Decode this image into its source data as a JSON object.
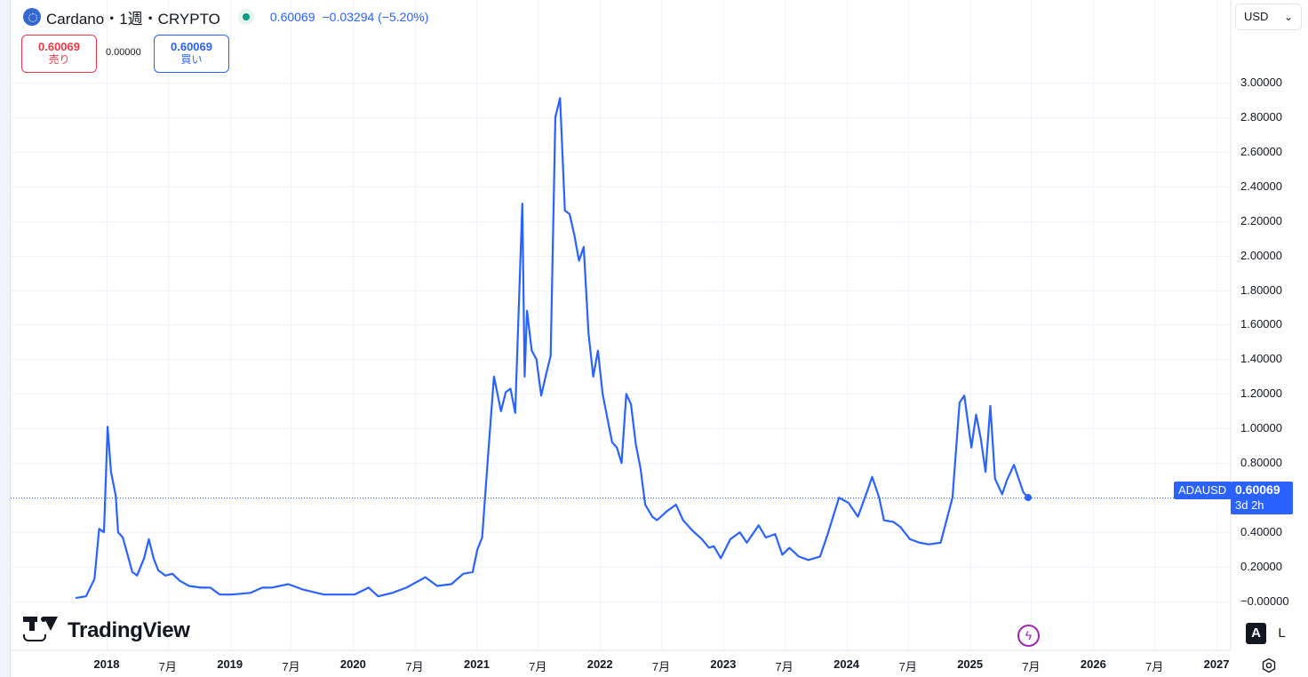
{
  "header": {
    "title": "Cardano・1週・CRYPTO",
    "last_price": "0.60069",
    "change": "−0.03294 (−5.20%)"
  },
  "trade": {
    "sell_price": "0.60069",
    "sell_label": "売り",
    "spread": "0.00000",
    "buy_price": "0.60069",
    "buy_label": "買い"
  },
  "currency": {
    "label": "USD"
  },
  "badge": {
    "symbol": "ADAUSD",
    "price": "0.60069",
    "countdown": "3d 2h"
  },
  "watermark": {
    "brand": "TradingView"
  },
  "scale_buttons": {
    "auto": "A",
    "log": "L"
  },
  "colors": {
    "line": "#2962ff",
    "sell": "#f23645",
    "buy": "#2962ff",
    "up": "#089981",
    "grid": "#f0f3fa"
  },
  "icons": [
    "cardano-logo-icon",
    "market-status-icon",
    "chevron-down-icon",
    "flash-icon",
    "settings-icon",
    "tradingview-logo-icon"
  ],
  "chart_data": {
    "type": "line",
    "series": [
      {
        "name": "ADAUSD",
        "points": [
          [
            "2017-10-01",
            0.02
          ],
          [
            "2017-11-01",
            0.03
          ],
          [
            "2017-11-26",
            0.13
          ],
          [
            "2017-12-10",
            0.42
          ],
          [
            "2017-12-24",
            0.4
          ],
          [
            "2018-01-04",
            1.01
          ],
          [
            "2018-01-14",
            0.75
          ],
          [
            "2018-01-28",
            0.61
          ],
          [
            "2018-02-04",
            0.4
          ],
          [
            "2018-02-18",
            0.37
          ],
          [
            "2018-03-04",
            0.27
          ],
          [
            "2018-03-18",
            0.17
          ],
          [
            "2018-04-01",
            0.15
          ],
          [
            "2018-04-22",
            0.25
          ],
          [
            "2018-05-06",
            0.36
          ],
          [
            "2018-05-20",
            0.25
          ],
          [
            "2018-06-03",
            0.18
          ],
          [
            "2018-06-24",
            0.15
          ],
          [
            "2018-07-15",
            0.16
          ],
          [
            "2018-08-05",
            0.12
          ],
          [
            "2018-09-02",
            0.09
          ],
          [
            "2018-10-07",
            0.08
          ],
          [
            "2018-11-04",
            0.08
          ],
          [
            "2018-12-02",
            0.04
          ],
          [
            "2019-01-06",
            0.04
          ],
          [
            "2019-03-03",
            0.05
          ],
          [
            "2019-04-07",
            0.08
          ],
          [
            "2019-05-05",
            0.08
          ],
          [
            "2019-06-23",
            0.1
          ],
          [
            "2019-08-04",
            0.07
          ],
          [
            "2019-10-06",
            0.04
          ],
          [
            "2019-12-01",
            0.04
          ],
          [
            "2020-01-05",
            0.04
          ],
          [
            "2020-02-16",
            0.08
          ],
          [
            "2020-03-15",
            0.03
          ],
          [
            "2020-04-26",
            0.05
          ],
          [
            "2020-06-07",
            0.08
          ],
          [
            "2020-08-02",
            0.14
          ],
          [
            "2020-09-06",
            0.09
          ],
          [
            "2020-10-18",
            0.1
          ],
          [
            "2020-11-22",
            0.16
          ],
          [
            "2020-12-20",
            0.17
          ],
          [
            "2021-01-03",
            0.3
          ],
          [
            "2021-01-17",
            0.37
          ],
          [
            "2021-02-07",
            0.93
          ],
          [
            "2021-02-21",
            1.3
          ],
          [
            "2021-03-14",
            1.1
          ],
          [
            "2021-03-28",
            1.21
          ],
          [
            "2021-04-11",
            1.23
          ],
          [
            "2021-04-25",
            1.09
          ],
          [
            "2021-05-16",
            2.3
          ],
          [
            "2021-05-23",
            1.3
          ],
          [
            "2021-05-30",
            1.68
          ],
          [
            "2021-06-13",
            1.45
          ],
          [
            "2021-06-27",
            1.4
          ],
          [
            "2021-07-11",
            1.19
          ],
          [
            "2021-07-25",
            1.31
          ],
          [
            "2021-08-08",
            1.42
          ],
          [
            "2021-08-22",
            2.8
          ],
          [
            "2021-09-05",
            2.91
          ],
          [
            "2021-09-19",
            2.26
          ],
          [
            "2021-10-03",
            2.24
          ],
          [
            "2021-10-17",
            2.12
          ],
          [
            "2021-10-31",
            1.97
          ],
          [
            "2021-11-14",
            2.05
          ],
          [
            "2021-11-28",
            1.55
          ],
          [
            "2021-12-12",
            1.3
          ],
          [
            "2021-12-26",
            1.45
          ],
          [
            "2022-01-09",
            1.2
          ],
          [
            "2022-01-23",
            1.06
          ],
          [
            "2022-02-06",
            0.92
          ],
          [
            "2022-02-20",
            0.89
          ],
          [
            "2022-03-06",
            0.8
          ],
          [
            "2022-03-20",
            1.2
          ],
          [
            "2022-04-03",
            1.14
          ],
          [
            "2022-04-17",
            0.91
          ],
          [
            "2022-05-01",
            0.77
          ],
          [
            "2022-05-15",
            0.56
          ],
          [
            "2022-06-05",
            0.49
          ],
          [
            "2022-06-19",
            0.47
          ],
          [
            "2022-07-17",
            0.52
          ],
          [
            "2022-08-14",
            0.56
          ],
          [
            "2022-09-04",
            0.47
          ],
          [
            "2022-10-02",
            0.41
          ],
          [
            "2022-10-30",
            0.36
          ],
          [
            "2022-11-20",
            0.31
          ],
          [
            "2022-12-04",
            0.32
          ],
          [
            "2022-12-25",
            0.25
          ],
          [
            "2023-01-22",
            0.36
          ],
          [
            "2023-02-19",
            0.4
          ],
          [
            "2023-03-12",
            0.34
          ],
          [
            "2023-04-16",
            0.44
          ],
          [
            "2023-05-07",
            0.37
          ],
          [
            "2023-06-04",
            0.39
          ],
          [
            "2023-06-25",
            0.27
          ],
          [
            "2023-07-16",
            0.31
          ],
          [
            "2023-08-13",
            0.26
          ],
          [
            "2023-09-10",
            0.24
          ],
          [
            "2023-10-15",
            0.26
          ],
          [
            "2023-11-05",
            0.38
          ],
          [
            "2023-12-10",
            0.6
          ],
          [
            "2024-01-07",
            0.57
          ],
          [
            "2024-02-04",
            0.49
          ],
          [
            "2024-03-03",
            0.64
          ],
          [
            "2024-03-17",
            0.72
          ],
          [
            "2024-04-07",
            0.6
          ],
          [
            "2024-04-21",
            0.47
          ],
          [
            "2024-05-19",
            0.46
          ],
          [
            "2024-06-09",
            0.43
          ],
          [
            "2024-07-07",
            0.36
          ],
          [
            "2024-08-04",
            0.34
          ],
          [
            "2024-09-01",
            0.33
          ],
          [
            "2024-10-06",
            0.34
          ],
          [
            "2024-11-10",
            0.6
          ],
          [
            "2024-12-01",
            1.15
          ],
          [
            "2024-12-15",
            1.19
          ],
          [
            "2025-01-05",
            0.89
          ],
          [
            "2025-01-19",
            1.08
          ],
          [
            "2025-02-02",
            0.94
          ],
          [
            "2025-02-16",
            0.75
          ],
          [
            "2025-03-02",
            1.13
          ],
          [
            "2025-03-16",
            0.71
          ],
          [
            "2025-04-06",
            0.62
          ],
          [
            "2025-04-20",
            0.7
          ],
          [
            "2025-05-11",
            0.79
          ],
          [
            "2025-05-25",
            0.71
          ],
          [
            "2025-06-08",
            0.63
          ],
          [
            "2025-06-22",
            0.60069
          ]
        ]
      }
    ],
    "y_ticks": [
      "3.00000",
      "2.80000",
      "2.60000",
      "2.40000",
      "2.20000",
      "2.00000",
      "1.80000",
      "1.60000",
      "1.40000",
      "1.20000",
      "1.00000",
      "0.80000",
      "0.40000",
      "0.20000",
      "−0.00000"
    ],
    "x_ticks": [
      {
        "date": "2018-01-01",
        "label": "2018",
        "year": true
      },
      {
        "date": "2018-07-01",
        "label": "7月",
        "year": false
      },
      {
        "date": "2019-01-01",
        "label": "2019",
        "year": true
      },
      {
        "date": "2019-07-01",
        "label": "7月",
        "year": false
      },
      {
        "date": "2020-01-01",
        "label": "2020",
        "year": true
      },
      {
        "date": "2020-07-01",
        "label": "7月",
        "year": false
      },
      {
        "date": "2021-01-01",
        "label": "2021",
        "year": true
      },
      {
        "date": "2021-07-01",
        "label": "7月",
        "year": false
      },
      {
        "date": "2022-01-01",
        "label": "2022",
        "year": true
      },
      {
        "date": "2022-07-01",
        "label": "7月",
        "year": false
      },
      {
        "date": "2023-01-01",
        "label": "2023",
        "year": true
      },
      {
        "date": "2023-07-01",
        "label": "7月",
        "year": false
      },
      {
        "date": "2024-01-01",
        "label": "2024",
        "year": true
      },
      {
        "date": "2024-07-01",
        "label": "7月",
        "year": false
      },
      {
        "date": "2025-01-01",
        "label": "2025",
        "year": true
      },
      {
        "date": "2025-07-01",
        "label": "7月",
        "year": false
      },
      {
        "date": "2026-01-01",
        "label": "2026",
        "year": true
      },
      {
        "date": "2026-07-01",
        "label": "7月",
        "year": false
      },
      {
        "date": "2027-01-01",
        "label": "2027",
        "year": true
      }
    ],
    "last_value": 0.60069,
    "ylim": [
      -0.1,
      3.05
    ],
    "grid": true,
    "price_scale": "right"
  }
}
